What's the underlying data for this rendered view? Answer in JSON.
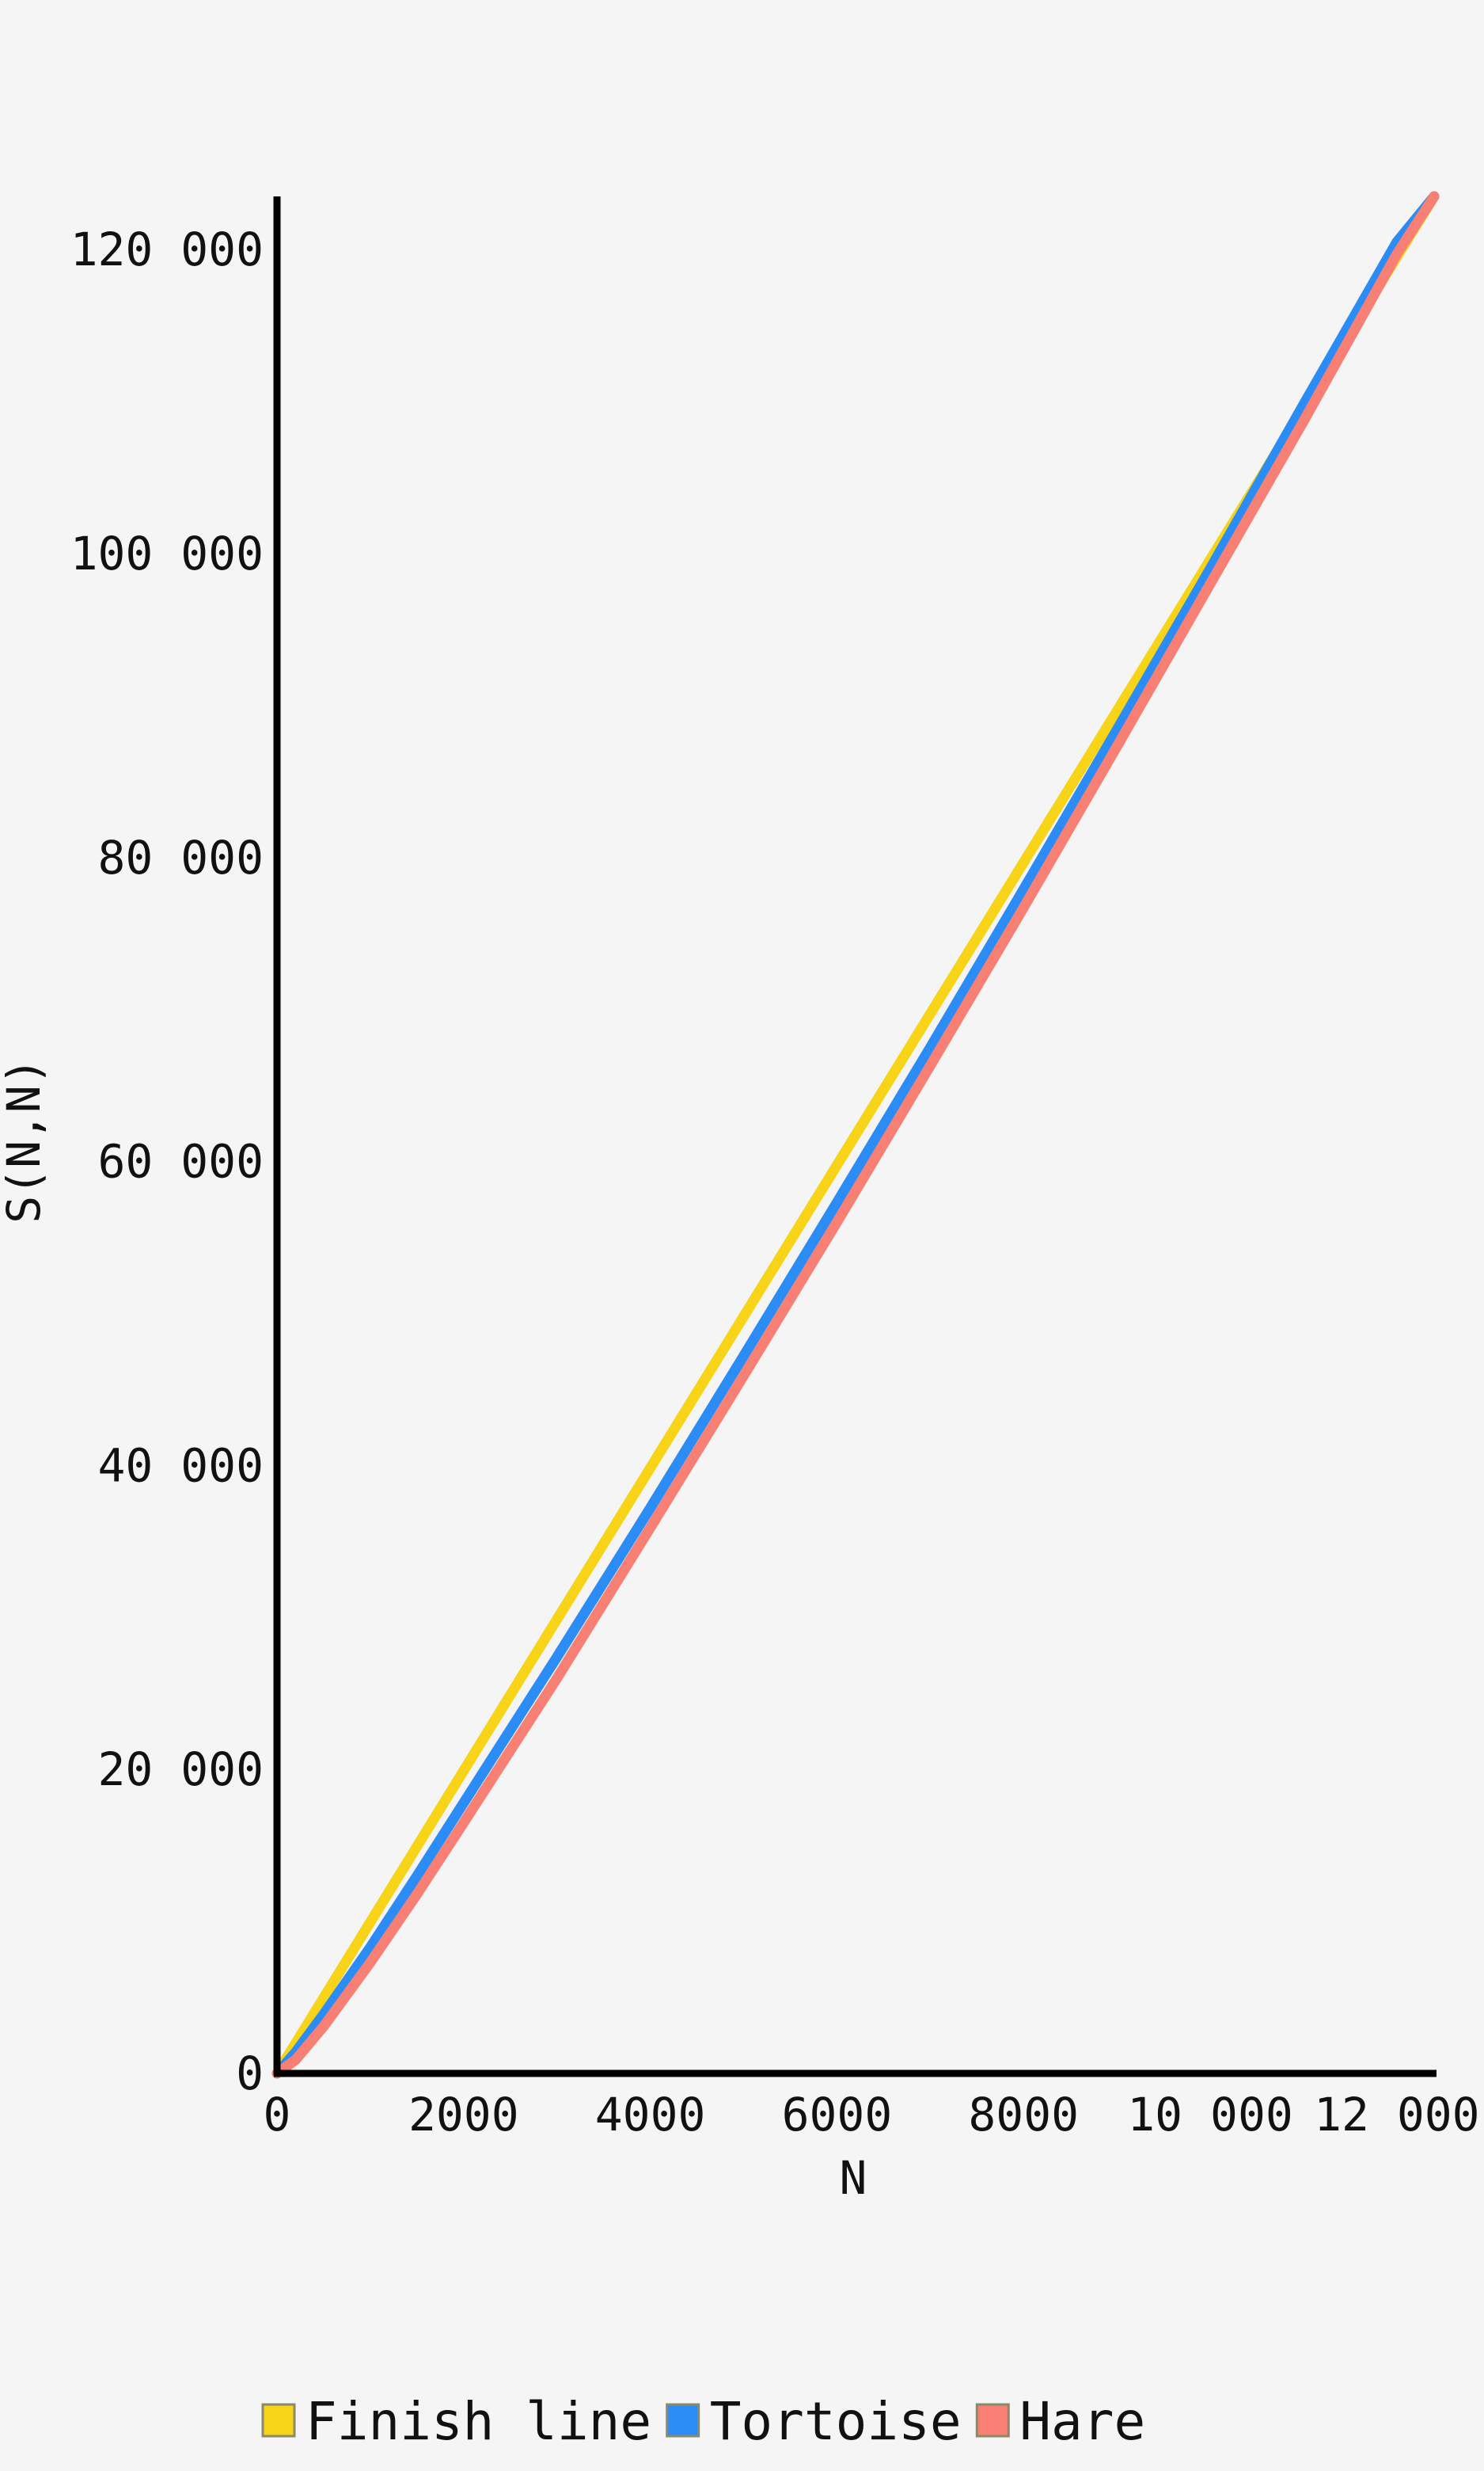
{
  "chart_data": {
    "type": "line",
    "xlabel": "N",
    "ylabel": "S(N,N)",
    "xlim": [
      0,
      12400
    ],
    "ylim": [
      0,
      123500
    ],
    "x_ticks": [
      {
        "value": 0,
        "label": "0"
      },
      {
        "value": 2000,
        "label": "2000"
      },
      {
        "value": 4000,
        "label": "4000"
      },
      {
        "value": 6000,
        "label": "6000"
      },
      {
        "value": 8000,
        "label": "8000"
      },
      {
        "value": 10000,
        "label": "10 000"
      },
      {
        "value": 12000,
        "label": "12 000"
      }
    ],
    "y_ticks": [
      {
        "value": 0,
        "label": "0"
      },
      {
        "value": 20000,
        "label": "20 000"
      },
      {
        "value": 40000,
        "label": "40 000"
      },
      {
        "value": 60000,
        "label": "60 000"
      },
      {
        "value": 80000,
        "label": "80 000"
      },
      {
        "value": 100000,
        "label": "100 000"
      },
      {
        "value": 120000,
        "label": "120 000"
      }
    ],
    "grid": false,
    "legend_position": "bottom",
    "series": [
      {
        "name": "Finish line",
        "color": "#f7d417",
        "x": [
          0,
          12400
        ],
        "y": [
          0,
          123500
        ]
      },
      {
        "name": "Tortoise",
        "color": "#2b8cf6",
        "x": [
          0,
          200,
          500,
          1000,
          1500,
          2000,
          3000,
          4000,
          5000,
          6000,
          7000,
          8000,
          9000,
          10000,
          11000,
          12000,
          12400
        ],
        "y": [
          0,
          1400,
          3900,
          8300,
          13000,
          17800,
          27400,
          37200,
          47200,
          57300,
          67500,
          77900,
          88400,
          99000,
          109800,
          120500,
          123500
        ]
      },
      {
        "name": "Hare",
        "color": "#f87f73",
        "x": [
          0,
          200,
          500,
          1000,
          1500,
          2000,
          3000,
          4000,
          5000,
          6000,
          7000,
          8000,
          9000,
          10000,
          11000,
          12000,
          12400
        ],
        "y": [
          0,
          900,
          3100,
          7300,
          11800,
          16500,
          26000,
          35900,
          45900,
          56000,
          66300,
          76700,
          87300,
          98000,
          108700,
          119700,
          123500
        ]
      }
    ]
  }
}
